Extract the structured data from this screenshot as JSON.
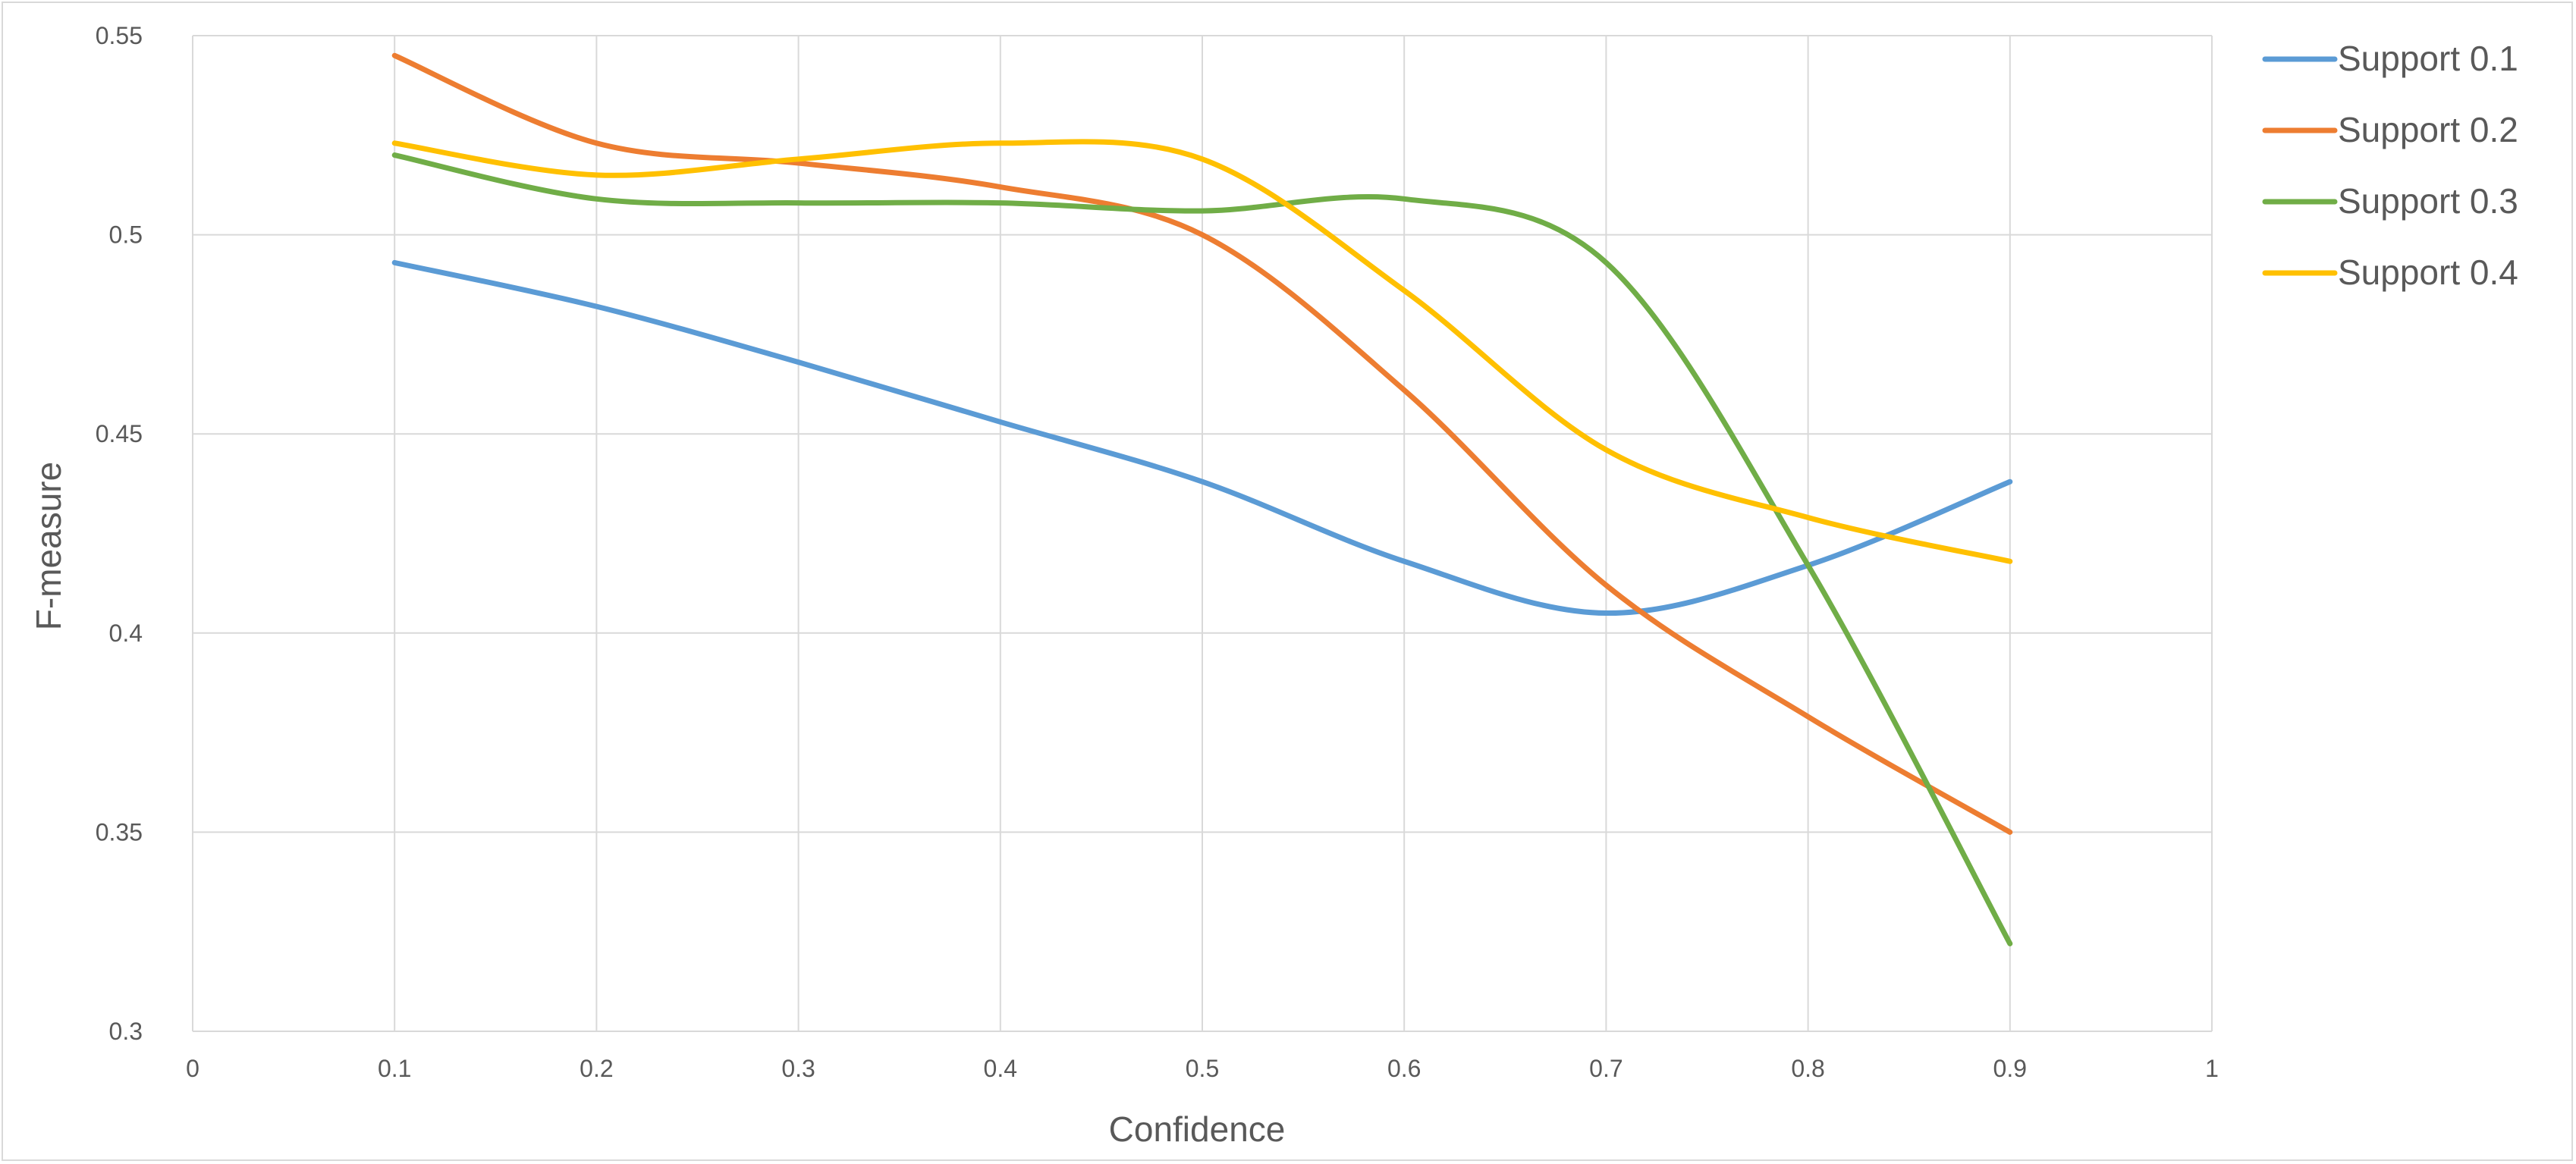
{
  "chart_data": {
    "type": "line",
    "title": "",
    "xlabel": "Confidence",
    "ylabel": "F-measure",
    "xlim": [
      0,
      1
    ],
    "ylim": [
      0.3,
      0.55
    ],
    "x_ticks": [
      "0",
      "0.1",
      "0.2",
      "0.3",
      "0.4",
      "0.5",
      "0.6",
      "0.7",
      "0.8",
      "0.9",
      "1"
    ],
    "y_ticks": [
      "0.3",
      "0.35",
      "0.4",
      "0.45",
      "0.5",
      "0.55"
    ],
    "grid": true,
    "smooth": true,
    "legend_position": "right",
    "x": [
      0.1,
      0.2,
      0.3,
      0.4,
      0.5,
      0.6,
      0.7,
      0.8,
      0.9
    ],
    "series": [
      {
        "name": "Support 0.1",
        "color": "#5b9bd5",
        "values": [
          0.493,
          0.482,
          0.468,
          0.453,
          0.438,
          0.418,
          0.405,
          0.417,
          0.438
        ]
      },
      {
        "name": "Support 0.2",
        "color": "#ed7d31",
        "values": [
          0.545,
          0.523,
          0.518,
          0.512,
          0.5,
          0.461,
          0.412,
          0.379,
          0.35
        ]
      },
      {
        "name": "Support 0.3",
        "color": "#70ad47",
        "values": [
          0.52,
          0.509,
          0.508,
          0.508,
          0.506,
          0.509,
          0.493,
          0.417,
          0.322
        ]
      },
      {
        "name": "Support 0.4",
        "color": "#ffc000",
        "values": [
          0.523,
          0.515,
          0.519,
          0.523,
          0.519,
          0.486,
          0.446,
          0.429,
          0.418
        ]
      }
    ]
  }
}
